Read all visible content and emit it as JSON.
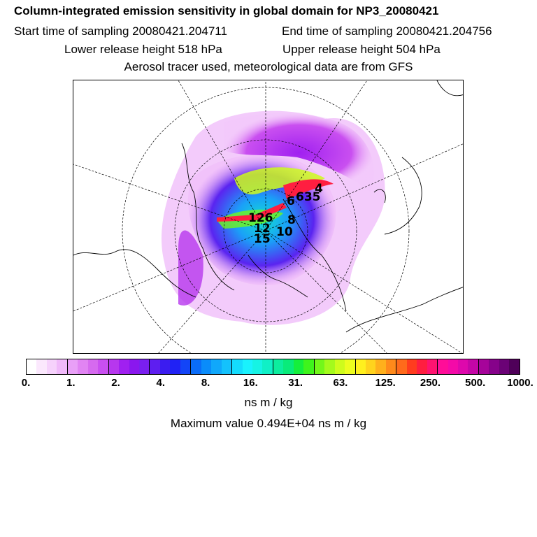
{
  "title": "Column-integrated emission sensitivity in global domain for NP3_20080421",
  "start_label": "Start time of sampling 20080421.204711",
  "end_label": "End time of sampling 20080421.204756",
  "lower_label": "Lower release height  518 hPa",
  "upper_label": "Upper release height  504 hPa",
  "tracer_label": "Aerosol tracer used, meteorological data are from GFS",
  "units": "ns m / kg",
  "max_label": "Maximum value  0.494E+04 ns m / kg",
  "colorbar": {
    "ticks": [
      "0.",
      "1.",
      "2.",
      "4.",
      "8.",
      "16.",
      "31.",
      "63.",
      "125.",
      "250.",
      "500.",
      "1000."
    ],
    "colors": [
      "#ffffff",
      "#fbe8fd",
      "#f6d2fc",
      "#f0b9fa",
      "#e9a0f7",
      "#e184f3",
      "#d66aef",
      "#c94ff0",
      "#b737ee",
      "#a020f0",
      "#8a17ee",
      "#7a1ff0",
      "#5e1ef0",
      "#3b1cf0",
      "#2022f5",
      "#1345f7",
      "#0a6cf8",
      "#0a8cfa",
      "#10a8fb",
      "#14c2fc",
      "#14dcfd",
      "#19f2fd",
      "#16f3e4",
      "#10f0c6",
      "#0ced9e",
      "#09eb7a",
      "#15ef3c",
      "#3ff41c",
      "#73f71a",
      "#a4fa1c",
      "#cefc1c",
      "#edfd1e",
      "#fff01e",
      "#ffd31d",
      "#ffb01c",
      "#ff8a1b",
      "#ff6a1b",
      "#ff3c1e",
      "#ff1e40",
      "#ff1370",
      "#ff0d98",
      "#f40aa8",
      "#de08ac",
      "#c406a6",
      "#a6049a",
      "#86028a",
      "#6b0276",
      "#4f0059"
    ]
  },
  "map": {
    "labels": [
      "4",
      "635",
      "6",
      "8",
      "126",
      "12",
      "15",
      "10"
    ]
  },
  "colors": {
    "frame": "#000000"
  }
}
